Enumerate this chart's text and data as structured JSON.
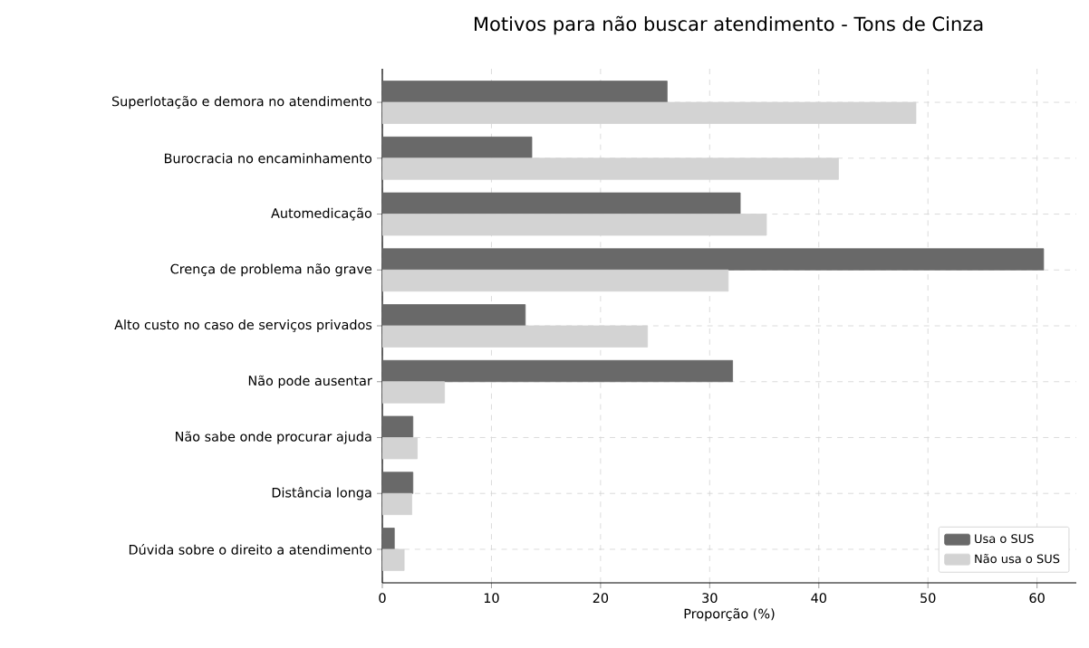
{
  "chart_data": {
    "type": "bar",
    "orientation": "horizontal",
    "title": "Motivos para não buscar atendimento - Tons de Cinza",
    "xlabel": "Proporção (%)",
    "categories": [
      "Superlotação e demora no atendimento",
      "Burocracia no encaminhamento",
      "Automedicação",
      "Crença de problema não grave",
      "Alto custo no caso de serviços privados",
      "Não pode ausentar",
      "Não sabe onde procurar ajuda",
      "Distância longa",
      "Dúvida sobre o direito a atendimento"
    ],
    "series": [
      {
        "name": "Usa o SUS",
        "color": "#696969",
        "values": [
          26.1,
          13.7,
          32.8,
          60.6,
          13.1,
          32.1,
          2.8,
          2.8,
          1.1
        ]
      },
      {
        "name": "Não usa o SUS",
        "color": "#d3d3d3",
        "values": [
          48.9,
          41.8,
          35.2,
          31.7,
          24.3,
          5.7,
          3.2,
          2.7,
          2.0
        ]
      }
    ],
    "xlim": [
      0,
      63.6
    ],
    "xticks": [
      0,
      10,
      20,
      30,
      40,
      50,
      60
    ],
    "grid": true,
    "legend": "bottom right"
  }
}
